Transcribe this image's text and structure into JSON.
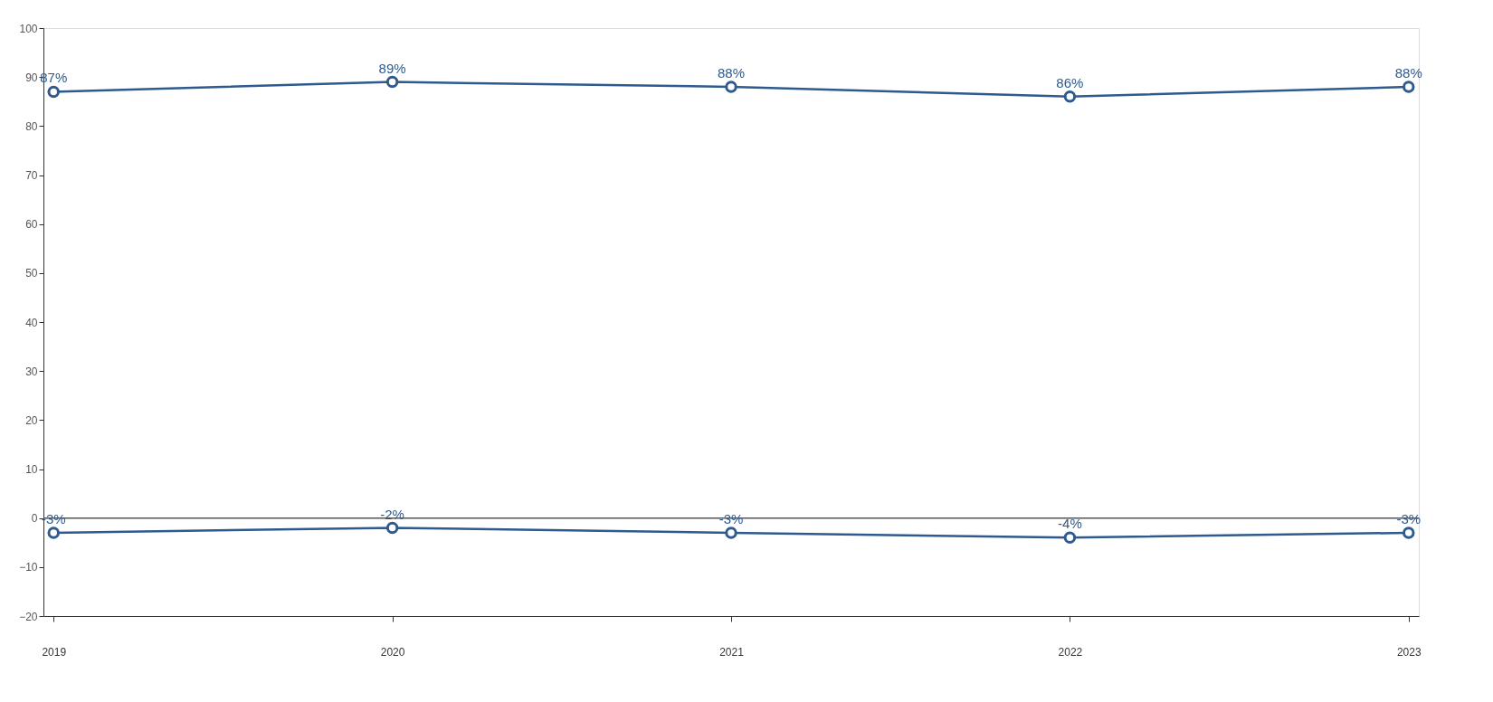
{
  "chart_data": {
    "type": "line",
    "categories": [
      "2019",
      "2020",
      "2021",
      "2022",
      "2023"
    ],
    "series": [
      {
        "color": "#2e5a8e",
        "values": [
          87,
          89,
          88,
          86,
          88
        ],
        "value_labels": [
          "87%",
          "89%",
          "88%",
          "86%",
          "88%"
        ]
      },
      {
        "color": "#2e5a8e",
        "values": [
          -3,
          -2,
          -3,
          -4,
          -3
        ],
        "value_labels": [
          "-3%",
          "-2%",
          "-3%",
          "-4%",
          "-3%"
        ]
      }
    ],
    "ylim": [
      -20,
      100
    ],
    "yticks": [
      -20,
      -10,
      0,
      10,
      20,
      30,
      40,
      50,
      60,
      70,
      80,
      90,
      100
    ],
    "ref_lines": [
      {
        "axis": "y",
        "value": 0,
        "color": "#555555"
      }
    ],
    "marker": "circle",
    "line_style": "solid",
    "grid": false
  }
}
